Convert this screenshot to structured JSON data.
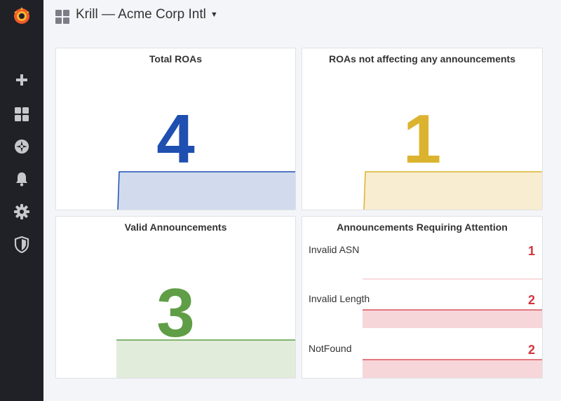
{
  "header": {
    "title": "Krill — Acme Corp Intl"
  },
  "colors": {
    "blue": "#1f4fb0",
    "yellow": "#dcb32e",
    "green": "#5f9e46",
    "red": "#d2353f"
  },
  "sidebar": {
    "items": [
      {
        "icon": "grafana-logo-icon"
      },
      {
        "icon": "plus-icon"
      },
      {
        "icon": "dashboards-icon"
      },
      {
        "icon": "explore-compass-icon"
      },
      {
        "icon": "alerting-bell-icon"
      },
      {
        "icon": "gear-icon"
      },
      {
        "icon": "shield-icon"
      }
    ]
  },
  "panels": {
    "total_roas": {
      "title": "Total ROAs",
      "value": "4"
    },
    "roas_unused": {
      "title": "ROAs not affecting any announcements",
      "value": "1"
    },
    "valid": {
      "title": "Valid Announcements",
      "value": "3"
    },
    "attention": {
      "title": "Announcements Requiring Attention",
      "rows": [
        {
          "label": "Invalid ASN",
          "value": "1"
        },
        {
          "label": "Invalid Length",
          "value": "2"
        },
        {
          "label": "NotFound",
          "value": "2"
        }
      ]
    }
  }
}
